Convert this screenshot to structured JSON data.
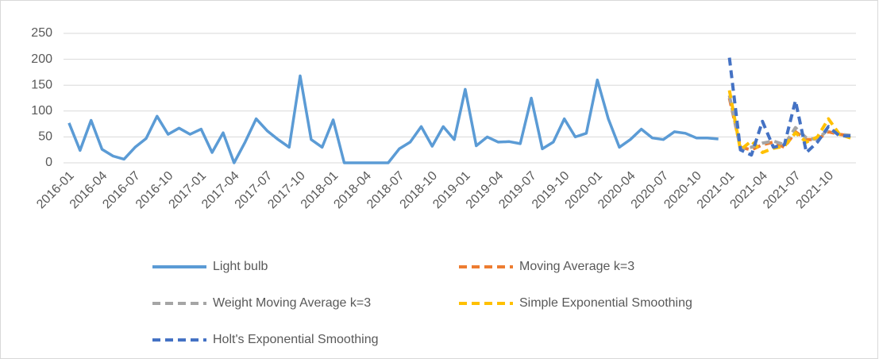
{
  "chart_data": {
    "type": "line",
    "categories": [
      "2016-01",
      null,
      null,
      "2016-04",
      null,
      null,
      "2016-07",
      null,
      null,
      "2016-10",
      null,
      null,
      "2017-01",
      null,
      null,
      "2017-04",
      null,
      null,
      "2017-07",
      null,
      null,
      "2017-10",
      null,
      null,
      "2018-01",
      null,
      null,
      "2018-04",
      null,
      null,
      "2018-07",
      null,
      null,
      "2018-10",
      null,
      null,
      "2019-01",
      null,
      null,
      "2019-04",
      null,
      null,
      "2019-07",
      null,
      null,
      "2019-10",
      null,
      null,
      "2020-01",
      null,
      null,
      "2020-04",
      null,
      null,
      "2020-07",
      null,
      null,
      "2020-10",
      null,
      null,
      "2021-01",
      null,
      null,
      "2021-04",
      null,
      null,
      "2021-07",
      null,
      null,
      "2021-10",
      null,
      null
    ],
    "series": [
      {
        "name": "Light bulb",
        "color": "#5b9bd5",
        "dashed": false,
        "values": [
          77,
          24,
          82,
          26,
          13,
          7,
          30,
          47,
          90,
          55,
          67,
          55,
          65,
          20,
          58,
          0,
          40,
          85,
          62,
          45,
          30,
          168,
          45,
          30,
          83,
          0,
          0,
          0,
          0,
          0,
          27,
          40,
          70,
          32,
          70,
          45,
          142,
          33,
          50,
          40,
          41,
          37,
          125,
          27,
          40,
          85,
          50,
          57,
          160,
          85,
          30,
          45,
          65,
          48,
          45,
          60,
          57,
          48,
          48,
          46,
          null,
          null,
          null,
          null,
          null,
          null,
          null,
          null,
          null,
          null,
          null,
          null
        ]
      },
      {
        "name": "Moving Average k=3",
        "color": "#ed7d31",
        "dashed": true,
        "values": [
          null,
          null,
          null,
          null,
          null,
          null,
          null,
          null,
          null,
          null,
          null,
          null,
          null,
          null,
          null,
          null,
          null,
          null,
          null,
          null,
          null,
          null,
          null,
          null,
          null,
          null,
          null,
          null,
          null,
          null,
          null,
          null,
          null,
          null,
          null,
          null,
          null,
          null,
          null,
          null,
          null,
          null,
          null,
          null,
          null,
          null,
          null,
          null,
          null,
          null,
          null,
          null,
          null,
          null,
          null,
          null,
          null,
          null,
          null,
          null,
          125,
          30,
          25,
          35,
          40,
          30,
          60,
          45,
          45,
          60,
          55,
          52
        ]
      },
      {
        "name": "Weight Moving Average k=3",
        "color": "#a5a5a5",
        "dashed": true,
        "values": [
          null,
          null,
          null,
          null,
          null,
          null,
          null,
          null,
          null,
          null,
          null,
          null,
          null,
          null,
          null,
          null,
          null,
          null,
          null,
          null,
          null,
          null,
          null,
          null,
          null,
          null,
          null,
          null,
          null,
          null,
          null,
          null,
          null,
          null,
          null,
          null,
          null,
          null,
          null,
          null,
          null,
          null,
          null,
          null,
          null,
          null,
          null,
          null,
          null,
          null,
          null,
          null,
          null,
          null,
          null,
          null,
          null,
          null,
          null,
          null,
          130,
          28,
          30,
          38,
          42,
          35,
          68,
          48,
          45,
          65,
          55,
          53
        ]
      },
      {
        "name": "Simple Exponential Smoothing",
        "color": "#ffc000",
        "dashed": true,
        "values": [
          null,
          null,
          null,
          null,
          null,
          null,
          null,
          null,
          null,
          null,
          null,
          null,
          null,
          null,
          null,
          null,
          null,
          null,
          null,
          null,
          null,
          null,
          null,
          null,
          null,
          null,
          null,
          null,
          null,
          null,
          null,
          null,
          null,
          null,
          null,
          null,
          null,
          null,
          null,
          null,
          null,
          null,
          null,
          null,
          null,
          null,
          null,
          null,
          null,
          null,
          null,
          null,
          null,
          null,
          null,
          null,
          null,
          null,
          null,
          null,
          140,
          25,
          42,
          20,
          28,
          32,
          58,
          40,
          50,
          85,
          55,
          48
        ]
      },
      {
        "name": "Holt's Exponential Smoothing",
        "color": "#4472c4",
        "dashed": true,
        "values": [
          null,
          null,
          null,
          null,
          null,
          null,
          null,
          null,
          null,
          null,
          null,
          null,
          null,
          null,
          null,
          null,
          null,
          null,
          null,
          null,
          null,
          null,
          null,
          null,
          null,
          null,
          null,
          null,
          null,
          null,
          null,
          null,
          null,
          null,
          null,
          null,
          null,
          null,
          null,
          null,
          null,
          null,
          null,
          null,
          null,
          null,
          null,
          null,
          null,
          null,
          null,
          null,
          null,
          null,
          null,
          null,
          null,
          null,
          null,
          null,
          203,
          25,
          15,
          80,
          30,
          35,
          120,
          20,
          40,
          70,
          52,
          52
        ]
      }
    ],
    "ylim": [
      0,
      250
    ],
    "yticks": [
      0,
      50,
      100,
      150,
      200,
      250
    ],
    "grid": true
  }
}
